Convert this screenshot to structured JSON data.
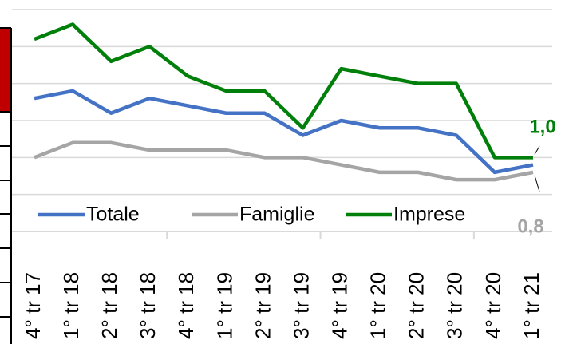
{
  "chart_data": {
    "type": "line",
    "categories": [
      "4° tr 17",
      "1° tr 18",
      "2° tr 18",
      "3° tr 18",
      "4° tr 18",
      "1° tr 19",
      "2° tr 19",
      "3° tr 19",
      "4° tr 19",
      "1° tr 20",
      "2° tr 20",
      "3° tr 20",
      "4° tr 20",
      "1° tr 21"
    ],
    "series": [
      {
        "name": "Totale",
        "color": "#4472c4",
        "values": [
          1.8,
          1.9,
          1.6,
          1.8,
          1.7,
          1.6,
          1.6,
          1.3,
          1.5,
          1.4,
          1.4,
          1.3,
          0.8,
          0.9
        ]
      },
      {
        "name": "Famiglie",
        "color": "#a5a5a5",
        "values": [
          1.0,
          1.2,
          1.2,
          1.1,
          1.1,
          1.1,
          1.0,
          1.0,
          0.9,
          0.8,
          0.8,
          0.7,
          0.7,
          0.8
        ],
        "value_labels": [
          null,
          null,
          null,
          null,
          null,
          null,
          null,
          null,
          null,
          null,
          null,
          null,
          null,
          "0,8"
        ]
      },
      {
        "name": "Imprese",
        "color": "#00800a",
        "values": [
          2.6,
          2.8,
          2.3,
          2.5,
          2.1,
          1.9,
          1.9,
          1.4,
          2.2,
          2.1,
          2.0,
          2.0,
          1.0,
          1.0
        ],
        "value_labels": [
          null,
          null,
          null,
          null,
          null,
          null,
          null,
          null,
          null,
          null,
          null,
          null,
          null,
          "1,0"
        ]
      }
    ],
    "ylim": [
      0,
      3
    ],
    "yticks": [
      0,
      0.5,
      1,
      1.5,
      2,
      2.5,
      3
    ],
    "grid": true
  }
}
